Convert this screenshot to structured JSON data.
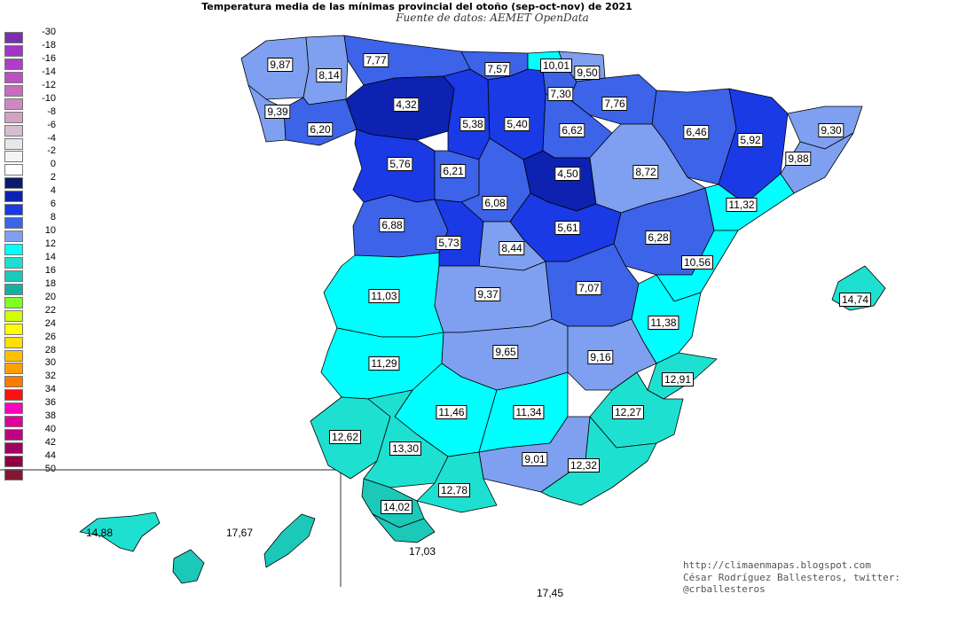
{
  "title": "Temperatura media de las mínimas provincial del otoño (sep-oct-nov) de 2021",
  "subtitle": "Fuente de datos: AEMET OpenData",
  "credits": {
    "url": "http://climaenmapas.blogspot.com",
    "author": "César Rodríguez Ballesteros, twitter: @crballesteros"
  },
  "legend": [
    {
      "label": "-30",
      "color": "#7a2fb0"
    },
    {
      "label": "-18",
      "color": "#a335c7"
    },
    {
      "label": "-16",
      "color": "#b03cc9"
    },
    {
      "label": "-14",
      "color": "#bb52c4"
    },
    {
      "label": "-12",
      "color": "#c86cc0"
    },
    {
      "label": "-10",
      "color": "#d088c2"
    },
    {
      "label": "-8",
      "color": "#d4a0c6"
    },
    {
      "label": "-6",
      "color": "#d9bcd0"
    },
    {
      "label": "-4",
      "color": "#e7e7e7"
    },
    {
      "label": "-2",
      "color": "#f4f4f4"
    },
    {
      "label": "0",
      "color": "#ffffff"
    },
    {
      "label": "2",
      "color": "#0b1a6e"
    },
    {
      "label": "4",
      "color": "#0d22b0"
    },
    {
      "label": "6",
      "color": "#1a3ae6"
    },
    {
      "label": "8",
      "color": "#3c63e8"
    },
    {
      "label": "10",
      "color": "#7fa0f0"
    },
    {
      "label": "12",
      "color": "#00ffff"
    },
    {
      "label": "14",
      "color": "#1ee0d0"
    },
    {
      "label": "16",
      "color": "#1cc8b8"
    },
    {
      "label": "18",
      "color": "#17b0a0"
    },
    {
      "label": "20",
      "color": "#80ff20"
    },
    {
      "label": "22",
      "color": "#d0ff00"
    },
    {
      "label": "24",
      "color": "#ffff00"
    },
    {
      "label": "26",
      "color": "#ffe000"
    },
    {
      "label": "28",
      "color": "#ffc000"
    },
    {
      "label": "30",
      "color": "#ffa000"
    },
    {
      "label": "32",
      "color": "#ff7a00"
    },
    {
      "label": "34",
      "color": "#ff1010"
    },
    {
      "label": "36",
      "color": "#ff00c0"
    },
    {
      "label": "38",
      "color": "#e0009a"
    },
    {
      "label": "40",
      "color": "#c00080"
    },
    {
      "label": "42",
      "color": "#a00060"
    },
    {
      "label": "44",
      "color": "#900040"
    },
    {
      "label": "50",
      "color": "#801830"
    }
  ],
  "provinces": [
    {
      "label": "9,87",
      "color": "#7fa0f0"
    },
    {
      "label": "8,14",
      "color": "#7fa0f0"
    },
    {
      "label": "9,39",
      "color": "#7fa0f0"
    },
    {
      "label": "6,20",
      "color": "#3c63e8"
    },
    {
      "label": "7,77",
      "color": "#3c63e8"
    },
    {
      "label": "4,32",
      "color": "#0d22b0"
    },
    {
      "label": "7,57",
      "color": "#3c63e8"
    },
    {
      "label": "10,01",
      "color": "#00ffff"
    },
    {
      "label": "9,50",
      "color": "#7fa0f0"
    },
    {
      "label": "7,30",
      "color": "#3c63e8"
    },
    {
      "label": "7,76",
      "color": "#3c63e8"
    },
    {
      "label": "5,38",
      "color": "#1a3ae6"
    },
    {
      "label": "5,40",
      "color": "#1a3ae6"
    },
    {
      "label": "6,62",
      "color": "#3c63e8"
    },
    {
      "label": "6,46",
      "color": "#3c63e8"
    },
    {
      "label": "5,92",
      "color": "#1a3ae6"
    },
    {
      "label": "9,30",
      "color": "#7fa0f0"
    },
    {
      "label": "9,88",
      "color": "#7fa0f0"
    },
    {
      "label": "5,76",
      "color": "#1a3ae6"
    },
    {
      "label": "6,21",
      "color": "#3c63e8"
    },
    {
      "label": "4,50",
      "color": "#0d22b0"
    },
    {
      "label": "8,72",
      "color": "#7fa0f0"
    },
    {
      "label": "6,08",
      "color": "#3c63e8"
    },
    {
      "label": "6,88",
      "color": "#3c63e8"
    },
    {
      "label": "5,73",
      "color": "#1a3ae6"
    },
    {
      "label": "5,61",
      "color": "#1a3ae6"
    },
    {
      "label": "11,32",
      "color": "#00ffff"
    },
    {
      "label": "6,28",
      "color": "#3c63e8"
    },
    {
      "label": "8,44",
      "color": "#7fa0f0"
    },
    {
      "label": "10,56",
      "color": "#00ffff"
    },
    {
      "label": "11,03",
      "color": "#00ffff"
    },
    {
      "label": "9,37",
      "color": "#7fa0f0"
    },
    {
      "label": "7,07",
      "color": "#3c63e8"
    },
    {
      "label": "11,38",
      "color": "#00ffff"
    },
    {
      "label": "14,74",
      "color": "#1ee0d0"
    },
    {
      "label": "11,29",
      "color": "#00ffff"
    },
    {
      "label": "9,65",
      "color": "#7fa0f0"
    },
    {
      "label": "9,16",
      "color": "#7fa0f0"
    },
    {
      "label": "12,91",
      "color": "#1ee0d0"
    },
    {
      "label": "11,46",
      "color": "#00ffff"
    },
    {
      "label": "11,34",
      "color": "#00ffff"
    },
    {
      "label": "12,27",
      "color": "#1ee0d0"
    },
    {
      "label": "12,62",
      "color": "#1ee0d0"
    },
    {
      "label": "13,30",
      "color": "#1ee0d0"
    },
    {
      "label": "9,01",
      "color": "#7fa0f0"
    },
    {
      "label": "12,32",
      "color": "#1ee0d0"
    },
    {
      "label": "12,78",
      "color": "#1ee0d0"
    },
    {
      "label": "14,02",
      "color": "#1cc8b8"
    },
    {
      "label": "17,03",
      "color": "#1cc8b8"
    },
    {
      "label": "14,88",
      "color": "#1ee0d0"
    },
    {
      "label": "17,67",
      "color": "#1cc8b8"
    },
    {
      "label": "17,45",
      "color": "#1cc8b8"
    }
  ]
}
